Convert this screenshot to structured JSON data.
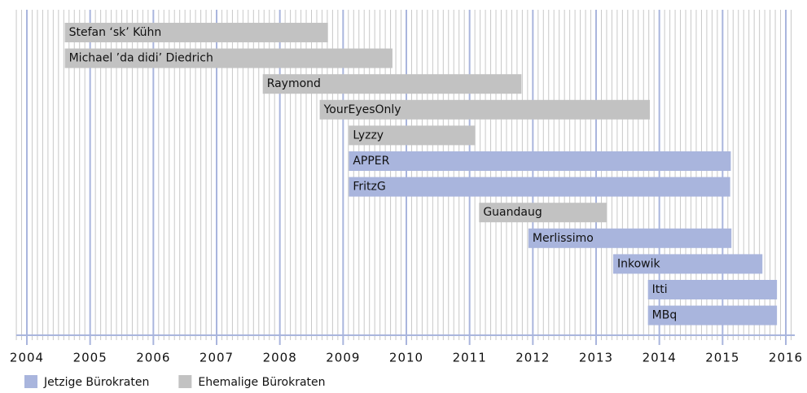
{
  "chart_data": {
    "type": "gantt",
    "categories": [
      "Stefan ‘sk’ Kühn",
      "Michael ’da didi’ Diedrich",
      "Raymond",
      "YourEyesOnly",
      "Lyzzy",
      "APPER",
      "FritzG",
      "Guandaug",
      "Merlissimo",
      "Inkowik",
      "Itti",
      "MBq"
    ],
    "start": [
      2004.6,
      2004.6,
      2007.73,
      2008.63,
      2009.09,
      2009.09,
      2009.09,
      2011.15,
      2011.93,
      2013.27,
      2013.82,
      2013.82
    ],
    "end": [
      2008.76,
      2009.78,
      2011.82,
      2013.85,
      2011.09,
      2015.13,
      2015.12,
      2013.17,
      2015.14,
      2015.63,
      2015.86,
      2015.86
    ],
    "colors": [
      "#c2c2c2",
      "#c2c2c2",
      "#c2c2c2",
      "#c2c2c2",
      "#c2c2c2",
      "#a9b5dd",
      "#a9b5dd",
      "#c2c2c2",
      "#a9b5dd",
      "#a9b5dd",
      "#a9b5dd",
      "#a9b5dd"
    ],
    "legend": [
      {
        "name": "Jetzige Bürokraten",
        "color": "#a9b5dd"
      },
      {
        "name": "Ehemalige Bürokraten",
        "color": "#c2c2c2"
      }
    ],
    "xlim": [
      2004,
      2016
    ],
    "xticks": [
      2004,
      2005,
      2006,
      2007,
      2008,
      2009,
      2010,
      2011,
      2012,
      2013,
      2014,
      2015,
      2016
    ],
    "grid": true
  }
}
